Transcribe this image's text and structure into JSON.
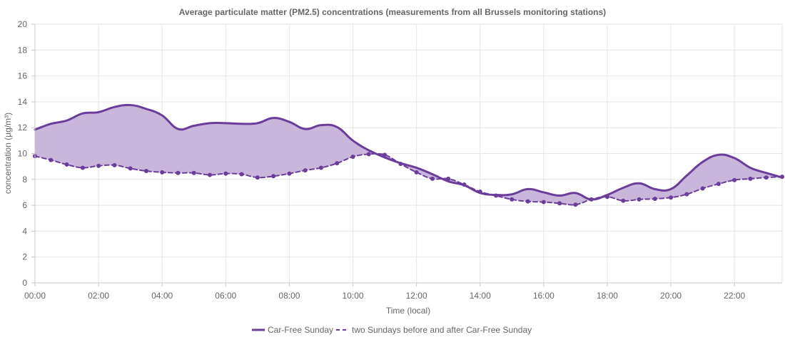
{
  "chart_data": {
    "type": "line",
    "title": "Average particulate matter (PM2.5) concentrations (measurements from all Brussels monitoring stations)",
    "xlabel": "Time (local)",
    "ylabel": "concentration (µg/m³)",
    "ylim": [
      0,
      20
    ],
    "yticks": [
      "0",
      "2",
      "4",
      "6",
      "8",
      "10",
      "12",
      "14",
      "16",
      "18",
      "20"
    ],
    "xticks": [
      "00:00",
      "02:00",
      "04:00",
      "06:00",
      "08:00",
      "10:00",
      "12:00",
      "14:00",
      "16:00",
      "18:00",
      "20:00",
      "22:00"
    ],
    "grid": true,
    "legend_position": "bottom",
    "fill_between_series": true,
    "x": [
      "00:00",
      "00:30",
      "01:00",
      "01:30",
      "02:00",
      "02:30",
      "03:00",
      "03:30",
      "04:00",
      "04:30",
      "05:00",
      "05:30",
      "06:00",
      "06:30",
      "07:00",
      "07:30",
      "08:00",
      "08:30",
      "09:00",
      "09:30",
      "10:00",
      "10:30",
      "11:00",
      "11:30",
      "12:00",
      "12:30",
      "13:00",
      "13:30",
      "14:00",
      "14:30",
      "15:00",
      "15:30",
      "16:00",
      "16:30",
      "17:00",
      "17:30",
      "18:00",
      "18:30",
      "19:00",
      "19:30",
      "20:00",
      "20:30",
      "21:00",
      "21:30",
      "22:00",
      "22:30",
      "23:00",
      "23:30"
    ],
    "series": [
      {
        "name": "Car-Free Sunday",
        "style": "solid",
        "color": "#6a3d9a",
        "values": [
          11.85,
          12.3,
          12.55,
          13.1,
          13.2,
          13.6,
          13.75,
          13.45,
          12.95,
          11.9,
          12.15,
          12.35,
          12.35,
          12.3,
          12.35,
          12.75,
          12.45,
          11.9,
          12.2,
          12.05,
          11.0,
          10.25,
          9.7,
          9.25,
          8.9,
          8.4,
          7.85,
          7.55,
          6.95,
          6.8,
          6.85,
          7.25,
          7.0,
          6.75,
          6.95,
          6.45,
          6.8,
          7.35,
          7.7,
          7.25,
          7.25,
          8.3,
          9.35,
          9.9,
          9.65,
          8.9,
          8.5,
          8.15
        ]
      },
      {
        "name": "two Sundays before and after Car-Free Sunday",
        "style": "dashed",
        "color": "#6a3d9a",
        "values": [
          9.8,
          9.5,
          9.15,
          8.9,
          9.05,
          9.1,
          8.85,
          8.65,
          8.55,
          8.5,
          8.5,
          8.35,
          8.45,
          8.4,
          8.15,
          8.25,
          8.45,
          8.7,
          8.9,
          9.25,
          9.75,
          9.95,
          9.9,
          9.2,
          8.55,
          8.05,
          8.05,
          7.6,
          7.05,
          6.75,
          6.45,
          6.3,
          6.25,
          6.15,
          6.05,
          6.45,
          6.65,
          6.35,
          6.45,
          6.5,
          6.6,
          6.85,
          7.3,
          7.65,
          7.95,
          8.05,
          8.15,
          8.2
        ]
      }
    ],
    "colors": {
      "line": "#6a3d9a",
      "fill": "#c5b3d9",
      "grid": "#e6e6e6",
      "axis": "#c8c8c8",
      "text": "#666666"
    }
  }
}
